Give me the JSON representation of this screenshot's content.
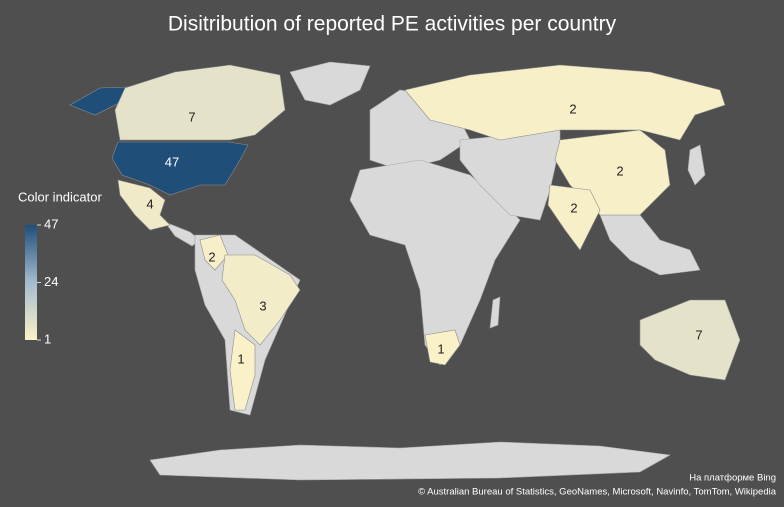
{
  "chart_data": {
    "type": "map",
    "title": "Disitribution of reported PE activities per country",
    "legend_title": "Color indicator",
    "scale": {
      "lim": [
        1,
        47
      ],
      "ticks": [
        1,
        24,
        47
      ],
      "colors": [
        "#fbf1c8",
        "#a4bccf",
        "#1f4e79"
      ]
    },
    "regions": {
      "values": [
        47,
        7,
        4,
        2,
        3,
        1,
        2,
        2,
        2,
        1,
        7
      ]
    }
  },
  "credits": [
    "На платформе Bing",
    "© Australian Bureau of Statistics, GeoNames, Microsoft, Navinfo, TomTom, Wikipedia"
  ]
}
